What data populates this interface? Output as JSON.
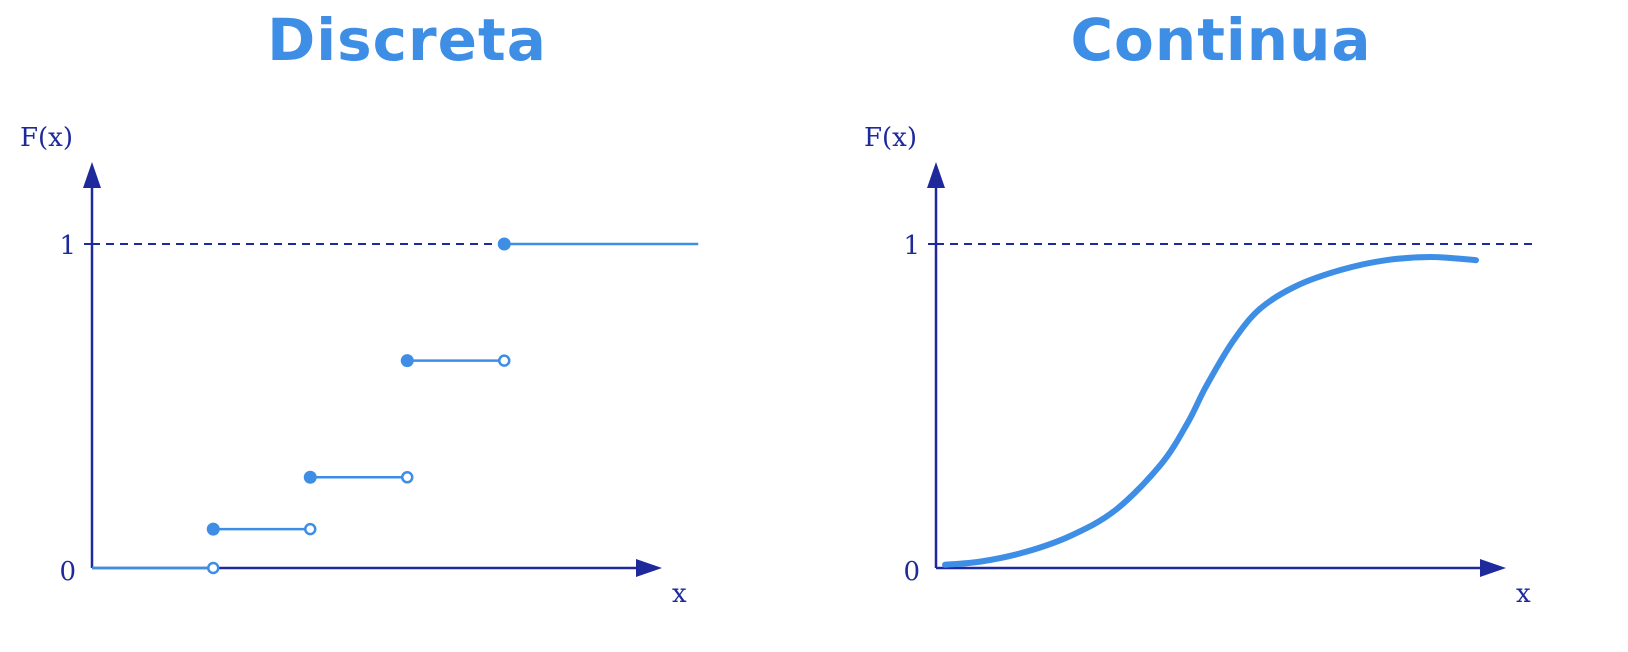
{
  "colors": {
    "accent": "#3e8ee6",
    "axis": "#1e2a9c",
    "title": "#3e8ee6"
  },
  "chart_data": [
    {
      "type": "step",
      "title": "Discreta",
      "ylabel": "F(x)",
      "xlabel": "x",
      "yticks": [
        {
          "value": 0,
          "label": "0"
        },
        {
          "value": 1,
          "label": "1"
        }
      ],
      "xlim": [
        0,
        6.3
      ],
      "ylim": [
        0,
        1.2
      ],
      "reference_line": {
        "y": 1,
        "style": "dashed"
      },
      "steps": [
        {
          "x0": 0,
          "x1": 1.25,
          "y": 0
        },
        {
          "x0": 1.25,
          "x1": 2.25,
          "y": 0.12
        },
        {
          "x0": 2.25,
          "x1": 3.25,
          "y": 0.28
        },
        {
          "x0": 3.25,
          "x1": 4.25,
          "y": 0.64
        },
        {
          "x0": 4.25,
          "x1": 6.25,
          "y": 1
        }
      ]
    },
    {
      "type": "line",
      "title": "Continua",
      "ylabel": "F(x)",
      "xlabel": "x",
      "yticks": [
        {
          "value": 0,
          "label": "0"
        },
        {
          "value": 1,
          "label": "1"
        }
      ],
      "xlim": [
        0,
        6
      ],
      "ylim": [
        0,
        1.2
      ],
      "reference_line": {
        "y": 1,
        "style": "dashed"
      },
      "x": [
        0.1,
        0.5,
        1,
        1.5,
        2,
        2.5,
        2.8,
        3.0,
        3.3,
        3.6,
        4,
        4.5,
        5,
        5.5,
        6.0
      ],
      "y": [
        0.01,
        0.02,
        0.05,
        0.1,
        0.18,
        0.32,
        0.45,
        0.56,
        0.7,
        0.8,
        0.87,
        0.92,
        0.95,
        0.96,
        0.95
      ]
    }
  ]
}
